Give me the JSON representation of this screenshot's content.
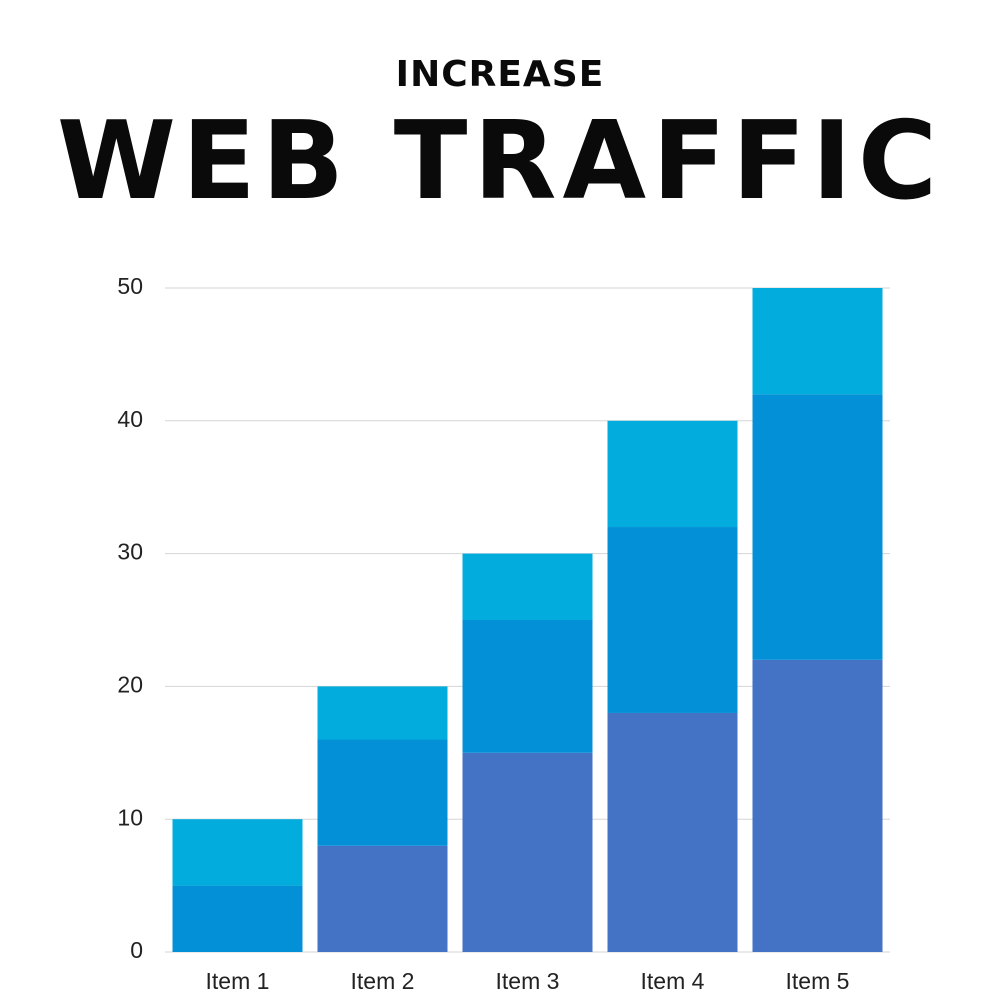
{
  "chart_data": {
    "type": "stacked-bar",
    "subtitle": "INCREASE",
    "title": "WEB TRAFFIC",
    "categories": [
      "Item 1",
      "Item 2",
      "Item 3",
      "Item 4",
      "Item 5"
    ],
    "series": [
      {
        "color": "#4472c4",
        "values": [
          0,
          8,
          15,
          18,
          22
        ]
      },
      {
        "color": "#0390d6",
        "values": [
          5,
          8,
          10,
          14,
          20
        ]
      },
      {
        "color": "#02acdc",
        "values": [
          5,
          4,
          5,
          8,
          8
        ]
      }
    ],
    "ylim": [
      0,
      50
    ],
    "yticks": [
      0,
      10,
      20,
      30,
      40,
      50
    ],
    "grid": true
  }
}
